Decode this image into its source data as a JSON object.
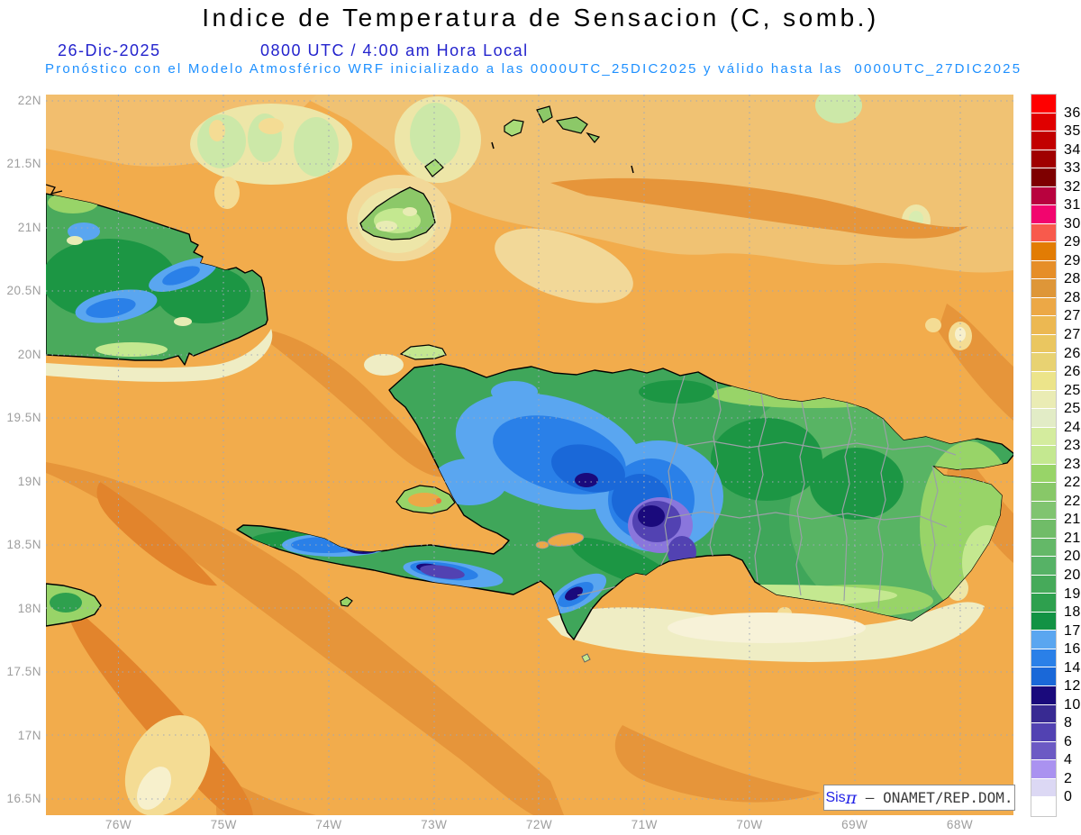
{
  "header": {
    "title": "Indice de Temperatura de Sensacion (C, somb.)",
    "date": "26-Dic-2025",
    "time": "0800 UTC / 4:00 am Hora Local",
    "forecast": "Pronóstico con el Modelo Atmosférico WRF inicializado a las 0000UTC_25DIC2025 y válido hasta las  0000UTC_27DIC2025"
  },
  "map": {
    "lat_labels": [
      "22N",
      "21.5N",
      "21N",
      "20.5N",
      "20N",
      "19.5N",
      "19N",
      "18.5N",
      "18N",
      "17.5N",
      "17N",
      "16.5N"
    ],
    "lon_labels": [
      "76W",
      "75W",
      "74W",
      "73W",
      "72W",
      "71W",
      "70W",
      "69W",
      "68W"
    ]
  },
  "colorbar": {
    "values": [
      "36",
      "35",
      "34",
      "33",
      "32",
      "31.5",
      "30.7",
      "29.7",
      "29",
      "28.5",
      "28",
      "27.5",
      "27",
      "26.5",
      "26",
      "25.5",
      "25",
      "24",
      "23.5",
      "23",
      "22.5",
      "22",
      "21.5",
      "21",
      "20.5",
      "20",
      "19",
      "18",
      "17",
      "16",
      "14",
      "12",
      "10",
      "8",
      "6",
      "4",
      "2",
      "0"
    ],
    "colors": [
      "#FF0000",
      "#E00000",
      "#C20000",
      "#A00000",
      "#7E0000",
      "#B8023E",
      "#F2056E",
      "#F85A4C",
      "#E27C04",
      "#E68E28",
      "#DE9638",
      "#ECA846",
      "#ECB852",
      "#EAC660",
      "#E8D272",
      "#ECE48A",
      "#EAECB4",
      "#E2ECC6",
      "#D4EC9E",
      "#C4E890",
      "#98D468",
      "#88C868",
      "#80C470",
      "#70BC68",
      "#64B868",
      "#56B266",
      "#46AA5A",
      "#2EA04E",
      "#129244",
      "#5AA6F0",
      "#2A80E8",
      "#1A68D8",
      "#1A0A7C",
      "#382A92",
      "#5242B2",
      "#6C5AC4",
      "#AA92F0",
      "#DCD8F4",
      "#FFFFFF"
    ]
  },
  "watermark": {
    "brand": "Sis",
    "pi": "π",
    "rest": " – ONAMET/REP.DOM."
  }
}
